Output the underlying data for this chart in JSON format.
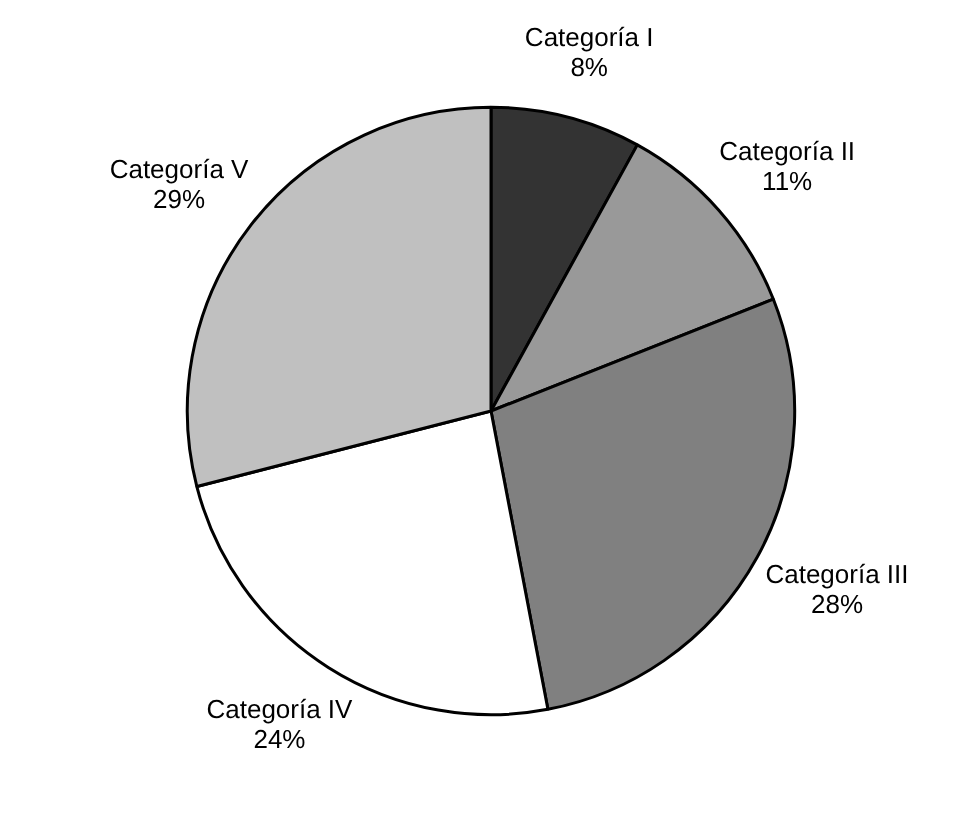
{
  "chart_data": {
    "type": "pie",
    "categories": [
      "Categoría I",
      "Categoría II",
      "Categoría III",
      "Categoría IV",
      "Categoría V"
    ],
    "values": [
      8,
      11,
      28,
      24,
      29
    ],
    "value_labels": [
      "8%",
      "11%",
      "28%",
      "24%",
      "29%"
    ],
    "colors": [
      "#333333",
      "#999999",
      "#808080",
      "#ffffff",
      "#c0c0c0"
    ],
    "legend": false
  }
}
